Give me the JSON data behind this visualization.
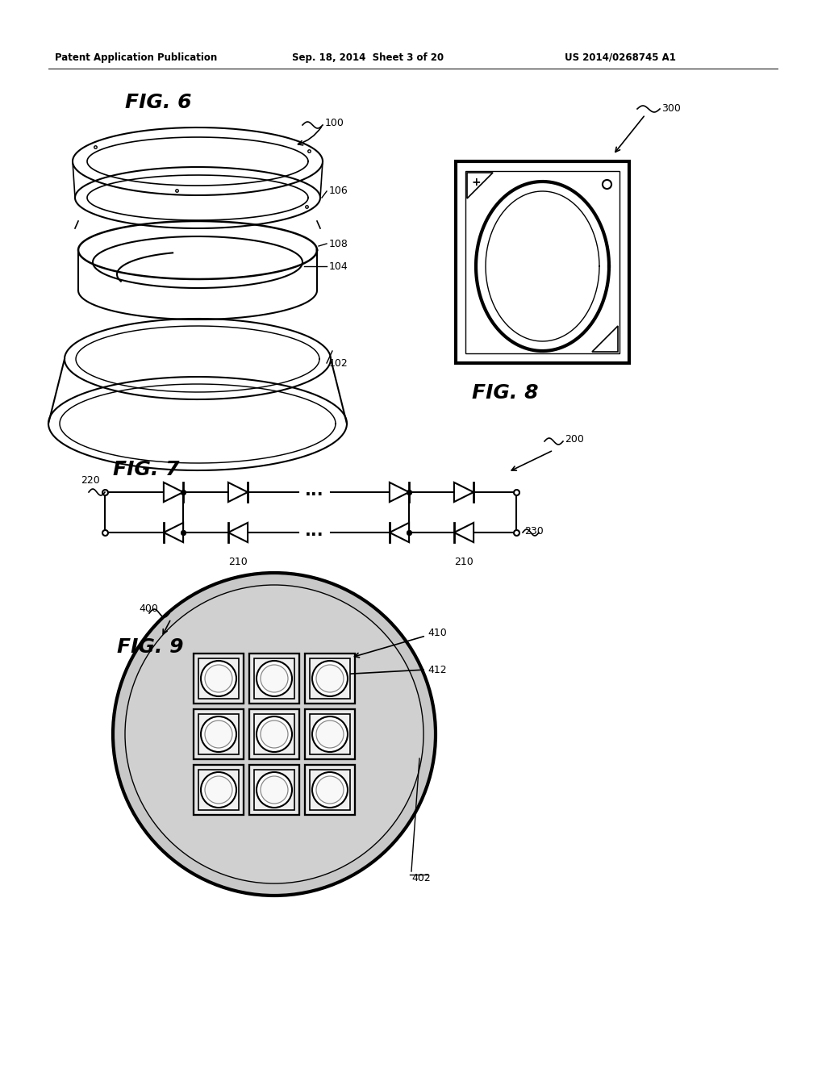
{
  "bg_color": "#ffffff",
  "header_left": "Patent Application Publication",
  "header_mid": "Sep. 18, 2014  Sheet 3 of 20",
  "header_right": "US 2014/0268745 A1",
  "fig6_label": "FIG. 6",
  "fig7_label": "FIG. 7",
  "fig8_label": "FIG. 8",
  "fig9_label": "FIG. 9",
  "line_color": "#000000",
  "line_width": 1.5,
  "thick_lw": 3.0
}
